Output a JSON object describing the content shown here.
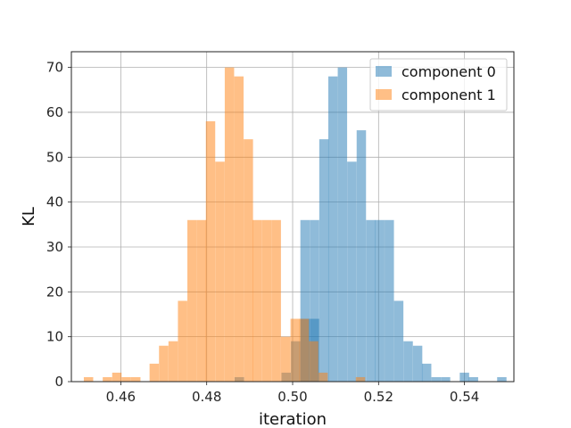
{
  "chart_data": {
    "type": "histogram",
    "xlabel": "iteration",
    "ylabel": "KL",
    "xlim": [
      0.4485,
      0.5515
    ],
    "ylim": [
      0,
      73.5
    ],
    "grid": true,
    "legend_position": "top-right",
    "xticks": [
      0.46,
      0.48,
      0.5,
      0.52,
      0.54
    ],
    "xtick_labels": [
      "0.46",
      "0.48",
      "0.50",
      "0.52",
      "0.54"
    ],
    "yticks": [
      0,
      10,
      20,
      30,
      40,
      50,
      60,
      70
    ],
    "ytick_labels": [
      "0",
      "10",
      "20",
      "30",
      "40",
      "50",
      "60",
      "70"
    ],
    "series": [
      {
        "name": "component 0",
        "color": "#1f77b4",
        "alpha": 0.5,
        "bin_width": 0.00218,
        "bins": [
          [
            0.4865,
            1
          ],
          [
            0.4974,
            2
          ],
          [
            0.4996,
            9
          ],
          [
            0.5018,
            14
          ],
          [
            0.504,
            14
          ],
          [
            0.5018,
            36
          ],
          [
            0.504,
            36
          ],
          [
            0.5062,
            54
          ],
          [
            0.5083,
            68
          ],
          [
            0.5105,
            70
          ],
          [
            0.5127,
            49
          ],
          [
            0.5149,
            56
          ],
          [
            0.5171,
            36
          ],
          [
            0.5192,
            36
          ],
          [
            0.5214,
            36
          ],
          [
            0.5236,
            18
          ],
          [
            0.5258,
            9
          ],
          [
            0.528,
            8
          ],
          [
            0.5301,
            4
          ],
          [
            0.5323,
            1
          ],
          [
            0.5345,
            1
          ],
          [
            0.5389,
            2
          ],
          [
            0.541,
            1
          ],
          [
            0.5476,
            1
          ]
        ]
      },
      {
        "name": "component 1",
        "color": "#ff7f0e",
        "alpha": 0.5,
        "bin_width": 0.00218,
        "bins": [
          [
            0.4514,
            1
          ],
          [
            0.4558,
            1
          ],
          [
            0.458,
            2
          ],
          [
            0.4602,
            1
          ],
          [
            0.4624,
            1
          ],
          [
            0.4667,
            4
          ],
          [
            0.4689,
            8
          ],
          [
            0.4711,
            9
          ],
          [
            0.4733,
            18
          ],
          [
            0.4755,
            36
          ],
          [
            0.4777,
            36
          ],
          [
            0.4798,
            58
          ],
          [
            0.482,
            49
          ],
          [
            0.4842,
            70
          ],
          [
            0.4864,
            68
          ],
          [
            0.4886,
            54
          ],
          [
            0.4907,
            36
          ],
          [
            0.4929,
            36
          ],
          [
            0.4951,
            36
          ],
          [
            0.4973,
            10
          ],
          [
            0.4995,
            14
          ],
          [
            0.5016,
            14
          ],
          [
            0.5038,
            9
          ],
          [
            0.506,
            2
          ],
          [
            0.5147,
            1
          ]
        ]
      }
    ]
  }
}
